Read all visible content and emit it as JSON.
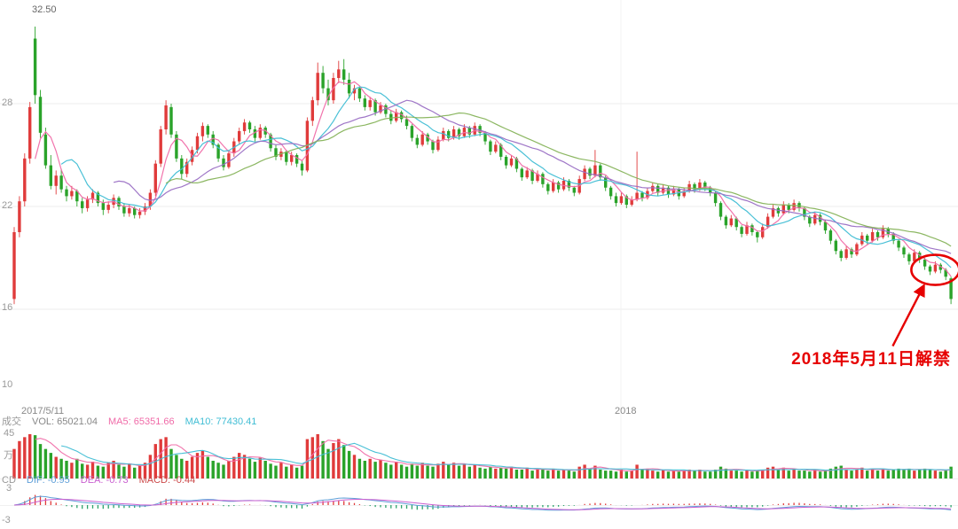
{
  "colors": {
    "up": "#e03b3b",
    "down": "#2aa32a",
    "grid": "#ededed",
    "axis_text": "#999999",
    "vol_text": "#888888",
    "macd_text": "#cc4a4a",
    "background": "#ffffff"
  },
  "chart_data": {
    "type": "candlestick",
    "title": "",
    "panels": [
      "price",
      "volume",
      "macd"
    ],
    "x_axis": {
      "labels": [
        "2017/5/11",
        "2018"
      ]
    },
    "price_axis": {
      "high_label": "32.50",
      "tick_labels": [
        "28",
        "22",
        "16",
        "10"
      ],
      "gridline_values": [
        28,
        22,
        16
      ],
      "range": [
        10,
        32.5
      ]
    },
    "volume_axis": {
      "max_label": "45",
      "unit": "万",
      "max": 45
    },
    "macd_axis": {
      "max_label": "3",
      "min_label": "-3",
      "max": 3,
      "min": -3
    },
    "legends": {
      "volume": {
        "prefix": "成交",
        "vol": "VOL: 65021.04",
        "ma5": "MA5: 65351.66",
        "ma10": "MA10: 77430.41"
      },
      "macd": {
        "prefix": "CD",
        "dif": "DIF: -0.95",
        "dea": "DEA: -0.73",
        "macd": "MACD: -0.44"
      }
    },
    "overlays": {
      "price_mas": [
        {
          "period": 5,
          "color": "#f06ba8"
        },
        {
          "period": 10,
          "color": "#3fbdd4"
        },
        {
          "period": 20,
          "color": "#9a6fc4"
        },
        {
          "period": 30,
          "color": "#86b35a"
        }
      ],
      "volume_mas": [
        {
          "period": 5,
          "color": "#f06ba8"
        },
        {
          "period": 10,
          "color": "#3fbdd4"
        }
      ],
      "macd": {
        "dif_color": "#5f9fd8",
        "dea_color": "#c95fd0",
        "bar_up": "#e03b3b",
        "bar_down": "#2aa36a"
      }
    },
    "annotation": {
      "text": "2018年5月11日解禁",
      "color": "#e60000",
      "candle_index": 176,
      "price": 18.3
    },
    "candles_format": [
      "open",
      "high",
      "low",
      "close",
      "volume_wan"
    ],
    "candles": [
      [
        16.6,
        20.8,
        16.3,
        20.5,
        30
      ],
      [
        20.5,
        22.6,
        20.2,
        22.3,
        38
      ],
      [
        22.3,
        25.1,
        22.0,
        24.8,
        42
      ],
      [
        24.8,
        28.1,
        24.5,
        27.8,
        45
      ],
      [
        31.8,
        32.5,
        28.0,
        28.5,
        44
      ],
      [
        28.4,
        28.8,
        26.0,
        26.3,
        35
      ],
      [
        26.2,
        26.6,
        24.2,
        24.4,
        30
      ],
      [
        24.4,
        25.0,
        23.0,
        23.2,
        26
      ],
      [
        23.2,
        24.1,
        22.7,
        23.8,
        22
      ],
      [
        23.8,
        24.2,
        22.8,
        23.0,
        20
      ],
      [
        23.0,
        23.2,
        22.3,
        22.6,
        18
      ],
      [
        22.6,
        23.2,
        22.4,
        22.9,
        16
      ],
      [
        22.9,
        23.0,
        22.0,
        22.3,
        20
      ],
      [
        22.3,
        22.5,
        21.6,
        21.9,
        15
      ],
      [
        21.9,
        22.6,
        21.7,
        22.4,
        14
      ],
      [
        22.4,
        23.0,
        22.2,
        22.8,
        17
      ],
      [
        22.8,
        22.9,
        22.0,
        22.2,
        13
      ],
      [
        22.2,
        22.4,
        21.5,
        21.8,
        12
      ],
      [
        21.8,
        22.3,
        21.6,
        22.1,
        16
      ],
      [
        22.1,
        22.7,
        21.9,
        22.5,
        18
      ],
      [
        22.5,
        22.6,
        21.8,
        22.0,
        14
      ],
      [
        22.0,
        22.2,
        21.4,
        21.6,
        12
      ],
      [
        21.6,
        22.1,
        21.4,
        21.9,
        15
      ],
      [
        21.9,
        22.0,
        21.3,
        21.5,
        11
      ],
      [
        21.5,
        21.9,
        21.3,
        21.7,
        13
      ],
      [
        21.7,
        22.2,
        21.5,
        22.0,
        16
      ],
      [
        22.0,
        23.0,
        21.8,
        22.8,
        24
      ],
      [
        22.8,
        24.7,
        22.6,
        24.5,
        35
      ],
      [
        24.5,
        26.7,
        24.3,
        26.5,
        40
      ],
      [
        26.5,
        28.2,
        26.2,
        27.9,
        42
      ],
      [
        27.8,
        28.0,
        26.0,
        26.2,
        30
      ],
      [
        26.2,
        26.4,
        24.6,
        24.8,
        24
      ],
      [
        24.8,
        25.0,
        23.6,
        23.9,
        20
      ],
      [
        23.9,
        24.8,
        23.7,
        24.6,
        18
      ],
      [
        24.6,
        25.5,
        24.4,
        25.3,
        22
      ],
      [
        25.3,
        26.3,
        25.1,
        26.1,
        26
      ],
      [
        26.1,
        26.9,
        25.8,
        26.7,
        28
      ],
      [
        26.7,
        26.8,
        26.0,
        26.2,
        22
      ],
      [
        26.2,
        26.4,
        25.4,
        25.6,
        18
      ],
      [
        25.6,
        25.7,
        24.6,
        24.8,
        16
      ],
      [
        24.8,
        25.0,
        24.1,
        24.3,
        14
      ],
      [
        24.3,
        25.3,
        24.2,
        25.1,
        18
      ],
      [
        25.1,
        26.0,
        24.9,
        25.8,
        22
      ],
      [
        25.8,
        26.6,
        25.6,
        26.4,
        26
      ],
      [
        26.4,
        27.1,
        26.2,
        26.9,
        24
      ],
      [
        26.9,
        27.0,
        26.3,
        26.5,
        20
      ],
      [
        26.5,
        26.7,
        25.8,
        26.0,
        17
      ],
      [
        26.0,
        26.8,
        25.9,
        26.6,
        21
      ],
      [
        26.6,
        26.7,
        26.0,
        26.2,
        18
      ],
      [
        26.2,
        26.3,
        25.2,
        25.4,
        15
      ],
      [
        25.4,
        25.6,
        24.7,
        24.9,
        13
      ],
      [
        24.9,
        25.4,
        24.7,
        25.2,
        16
      ],
      [
        25.2,
        25.3,
        24.4,
        24.6,
        12
      ],
      [
        24.6,
        25.2,
        24.4,
        25.0,
        14
      ],
      [
        25.0,
        25.1,
        24.3,
        24.5,
        11
      ],
      [
        24.5,
        24.7,
        23.8,
        24.1,
        13
      ],
      [
        24.1,
        27.2,
        24.0,
        27.0,
        40
      ],
      [
        27.0,
        28.4,
        26.7,
        28.2,
        42
      ],
      [
        28.2,
        30.4,
        27.9,
        29.8,
        45
      ],
      [
        29.8,
        30.2,
        28.6,
        28.9,
        38
      ],
      [
        28.9,
        29.4,
        27.9,
        28.2,
        30
      ],
      [
        28.2,
        29.8,
        28.0,
        29.5,
        36
      ],
      [
        29.5,
        30.5,
        29.2,
        30.0,
        40
      ],
      [
        30.0,
        30.6,
        29.1,
        29.4,
        34
      ],
      [
        29.4,
        29.8,
        28.3,
        28.6,
        28
      ],
      [
        28.6,
        29.1,
        28.2,
        28.9,
        24
      ],
      [
        28.9,
        29.0,
        28.1,
        28.3,
        20
      ],
      [
        28.3,
        28.5,
        27.6,
        27.8,
        18
      ],
      [
        27.8,
        28.4,
        27.6,
        28.2,
        20
      ],
      [
        28.2,
        28.3,
        27.3,
        27.5,
        17
      ],
      [
        27.5,
        28.1,
        27.4,
        27.9,
        19
      ],
      [
        27.9,
        28.0,
        27.2,
        27.4,
        16
      ],
      [
        27.4,
        27.6,
        26.8,
        27.0,
        14
      ],
      [
        27.0,
        27.7,
        26.9,
        27.5,
        17
      ],
      [
        27.5,
        27.6,
        26.9,
        27.1,
        14
      ],
      [
        27.1,
        27.3,
        26.5,
        26.7,
        12
      ],
      [
        26.7,
        26.8,
        25.8,
        26.0,
        15
      ],
      [
        26.0,
        26.2,
        25.4,
        25.6,
        13
      ],
      [
        25.6,
        26.4,
        25.5,
        26.2,
        16
      ],
      [
        26.2,
        26.3,
        25.6,
        25.8,
        13
      ],
      [
        25.8,
        25.9,
        25.1,
        25.3,
        12
      ],
      [
        25.3,
        26.1,
        25.2,
        25.9,
        15
      ],
      [
        25.9,
        26.6,
        25.8,
        26.4,
        17
      ],
      [
        26.4,
        26.5,
        25.8,
        26.0,
        14
      ],
      [
        26.0,
        26.7,
        25.9,
        26.5,
        16
      ],
      [
        26.5,
        26.6,
        25.9,
        26.1,
        13
      ],
      [
        26.1,
        26.8,
        26.0,
        26.6,
        15
      ],
      [
        26.6,
        26.7,
        26.0,
        26.2,
        12
      ],
      [
        26.2,
        26.9,
        26.1,
        26.7,
        14
      ],
      [
        26.7,
        26.8,
        26.1,
        26.3,
        11
      ],
      [
        26.3,
        26.4,
        25.6,
        25.8,
        10
      ],
      [
        25.8,
        25.9,
        25.0,
        25.2,
        12
      ],
      [
        25.2,
        25.8,
        25.1,
        25.6,
        10
      ],
      [
        25.6,
        25.7,
        24.7,
        24.9,
        11
      ],
      [
        24.9,
        25.0,
        24.2,
        24.4,
        10
      ],
      [
        24.4,
        25.0,
        24.3,
        24.8,
        12
      ],
      [
        24.8,
        24.9,
        24.0,
        24.2,
        9
      ],
      [
        24.2,
        24.3,
        23.5,
        23.7,
        9
      ],
      [
        23.7,
        24.3,
        23.6,
        24.1,
        11
      ],
      [
        24.1,
        24.2,
        23.3,
        23.5,
        8
      ],
      [
        23.5,
        24.1,
        23.4,
        23.9,
        10
      ],
      [
        23.9,
        24.0,
        23.1,
        23.3,
        9
      ],
      [
        23.3,
        23.4,
        22.7,
        22.9,
        8
      ],
      [
        22.9,
        23.6,
        22.8,
        23.4,
        10
      ],
      [
        23.4,
        23.5,
        22.8,
        23.0,
        8
      ],
      [
        23.0,
        23.7,
        22.9,
        23.5,
        9
      ],
      [
        23.5,
        23.6,
        22.9,
        23.1,
        8
      ],
      [
        23.1,
        23.2,
        22.6,
        22.8,
        7
      ],
      [
        22.8,
        23.8,
        22.7,
        23.6,
        12
      ],
      [
        23.6,
        24.4,
        23.5,
        24.2,
        14
      ],
      [
        24.2,
        24.3,
        23.6,
        23.8,
        10
      ],
      [
        23.8,
        25.3,
        23.7,
        24.4,
        13
      ],
      [
        24.4,
        24.5,
        23.5,
        23.7,
        9
      ],
      [
        23.7,
        23.8,
        22.9,
        23.1,
        8
      ],
      [
        23.1,
        23.2,
        22.4,
        22.6,
        8
      ],
      [
        22.6,
        22.8,
        22.0,
        22.2,
        7
      ],
      [
        22.2,
        22.8,
        22.1,
        22.6,
        9
      ],
      [
        22.6,
        22.7,
        21.9,
        22.1,
        7
      ],
      [
        22.1,
        22.6,
        22.0,
        22.4,
        8
      ],
      [
        22.4,
        25.2,
        22.3,
        22.8,
        14
      ],
      [
        22.8,
        22.9,
        22.3,
        22.5,
        9
      ],
      [
        22.5,
        23.1,
        22.4,
        22.9,
        10
      ],
      [
        22.9,
        23.4,
        22.8,
        23.2,
        8
      ],
      [
        23.2,
        23.3,
        22.6,
        22.8,
        7
      ],
      [
        22.8,
        23.3,
        22.7,
        23.1,
        9
      ],
      [
        23.1,
        23.2,
        22.5,
        22.7,
        7
      ],
      [
        22.7,
        23.2,
        22.6,
        23.0,
        8
      ],
      [
        23.0,
        23.1,
        22.4,
        22.6,
        7
      ],
      [
        22.6,
        23.1,
        22.5,
        22.9,
        8
      ],
      [
        22.9,
        23.5,
        22.8,
        23.3,
        9
      ],
      [
        23.3,
        23.4,
        22.8,
        23.0,
        8
      ],
      [
        23.0,
        23.6,
        22.9,
        23.4,
        9
      ],
      [
        23.4,
        23.5,
        22.9,
        23.1,
        7
      ],
      [
        23.1,
        23.2,
        22.6,
        22.8,
        7
      ],
      [
        22.8,
        22.9,
        22.0,
        22.2,
        9
      ],
      [
        22.2,
        22.3,
        21.2,
        21.4,
        12
      ],
      [
        21.4,
        21.5,
        20.7,
        20.9,
        10
      ],
      [
        20.9,
        21.5,
        20.8,
        21.3,
        8
      ],
      [
        21.3,
        21.4,
        20.6,
        20.8,
        8
      ],
      [
        20.8,
        20.9,
        20.2,
        20.4,
        7
      ],
      [
        20.4,
        21.1,
        20.3,
        20.9,
        9
      ],
      [
        20.9,
        21.0,
        20.3,
        20.5,
        7
      ],
      [
        20.5,
        20.6,
        19.9,
        20.2,
        8
      ],
      [
        20.2,
        21.0,
        20.1,
        20.8,
        9
      ],
      [
        20.8,
        21.6,
        20.7,
        21.4,
        11
      ],
      [
        21.4,
        22.1,
        21.3,
        21.9,
        12
      ],
      [
        21.9,
        22.0,
        21.4,
        21.6,
        9
      ],
      [
        21.6,
        22.3,
        21.5,
        22.1,
        11
      ],
      [
        22.1,
        22.2,
        21.6,
        21.8,
        8
      ],
      [
        21.8,
        22.4,
        21.7,
        22.2,
        10
      ],
      [
        22.2,
        22.3,
        21.7,
        21.9,
        8
      ],
      [
        21.9,
        22.0,
        21.2,
        21.4,
        8
      ],
      [
        21.4,
        21.5,
        20.8,
        21.0,
        7
      ],
      [
        21.0,
        21.7,
        20.9,
        21.5,
        9
      ],
      [
        21.5,
        21.6,
        20.9,
        21.1,
        7
      ],
      [
        21.1,
        21.2,
        20.4,
        20.6,
        8
      ],
      [
        20.6,
        20.7,
        19.8,
        20.0,
        10
      ],
      [
        20.0,
        20.1,
        19.2,
        19.4,
        12
      ],
      [
        19.4,
        19.5,
        18.8,
        19.0,
        13
      ],
      [
        19.0,
        19.7,
        18.9,
        19.5,
        9
      ],
      [
        19.5,
        19.6,
        19.0,
        19.2,
        8
      ],
      [
        19.2,
        19.9,
        19.1,
        19.8,
        9
      ],
      [
        19.8,
        20.5,
        19.7,
        20.3,
        11
      ],
      [
        20.3,
        20.4,
        19.8,
        20.0,
        8
      ],
      [
        20.0,
        20.7,
        19.9,
        20.5,
        10
      ],
      [
        20.5,
        20.6,
        20.0,
        20.2,
        8
      ],
      [
        20.2,
        20.9,
        20.1,
        20.7,
        10
      ],
      [
        20.7,
        20.8,
        20.2,
        20.4,
        8
      ],
      [
        20.4,
        20.5,
        19.8,
        20.0,
        9
      ],
      [
        20.0,
        20.1,
        19.4,
        19.6,
        10
      ],
      [
        19.6,
        19.7,
        19.0,
        19.2,
        9
      ],
      [
        19.2,
        19.3,
        18.6,
        18.8,
        10
      ],
      [
        18.8,
        19.5,
        18.7,
        19.3,
        8
      ],
      [
        19.3,
        19.4,
        18.7,
        18.9,
        9
      ],
      [
        18.9,
        19.0,
        18.3,
        18.5,
        10
      ],
      [
        18.5,
        18.6,
        18.0,
        18.2,
        9
      ],
      [
        18.2,
        18.8,
        18.1,
        18.6,
        8
      ],
      [
        18.6,
        18.7,
        18.1,
        18.3,
        7
      ],
      [
        18.3,
        18.4,
        17.7,
        17.9,
        8
      ],
      [
        17.8,
        17.9,
        16.3,
        16.6,
        12
      ]
    ]
  }
}
